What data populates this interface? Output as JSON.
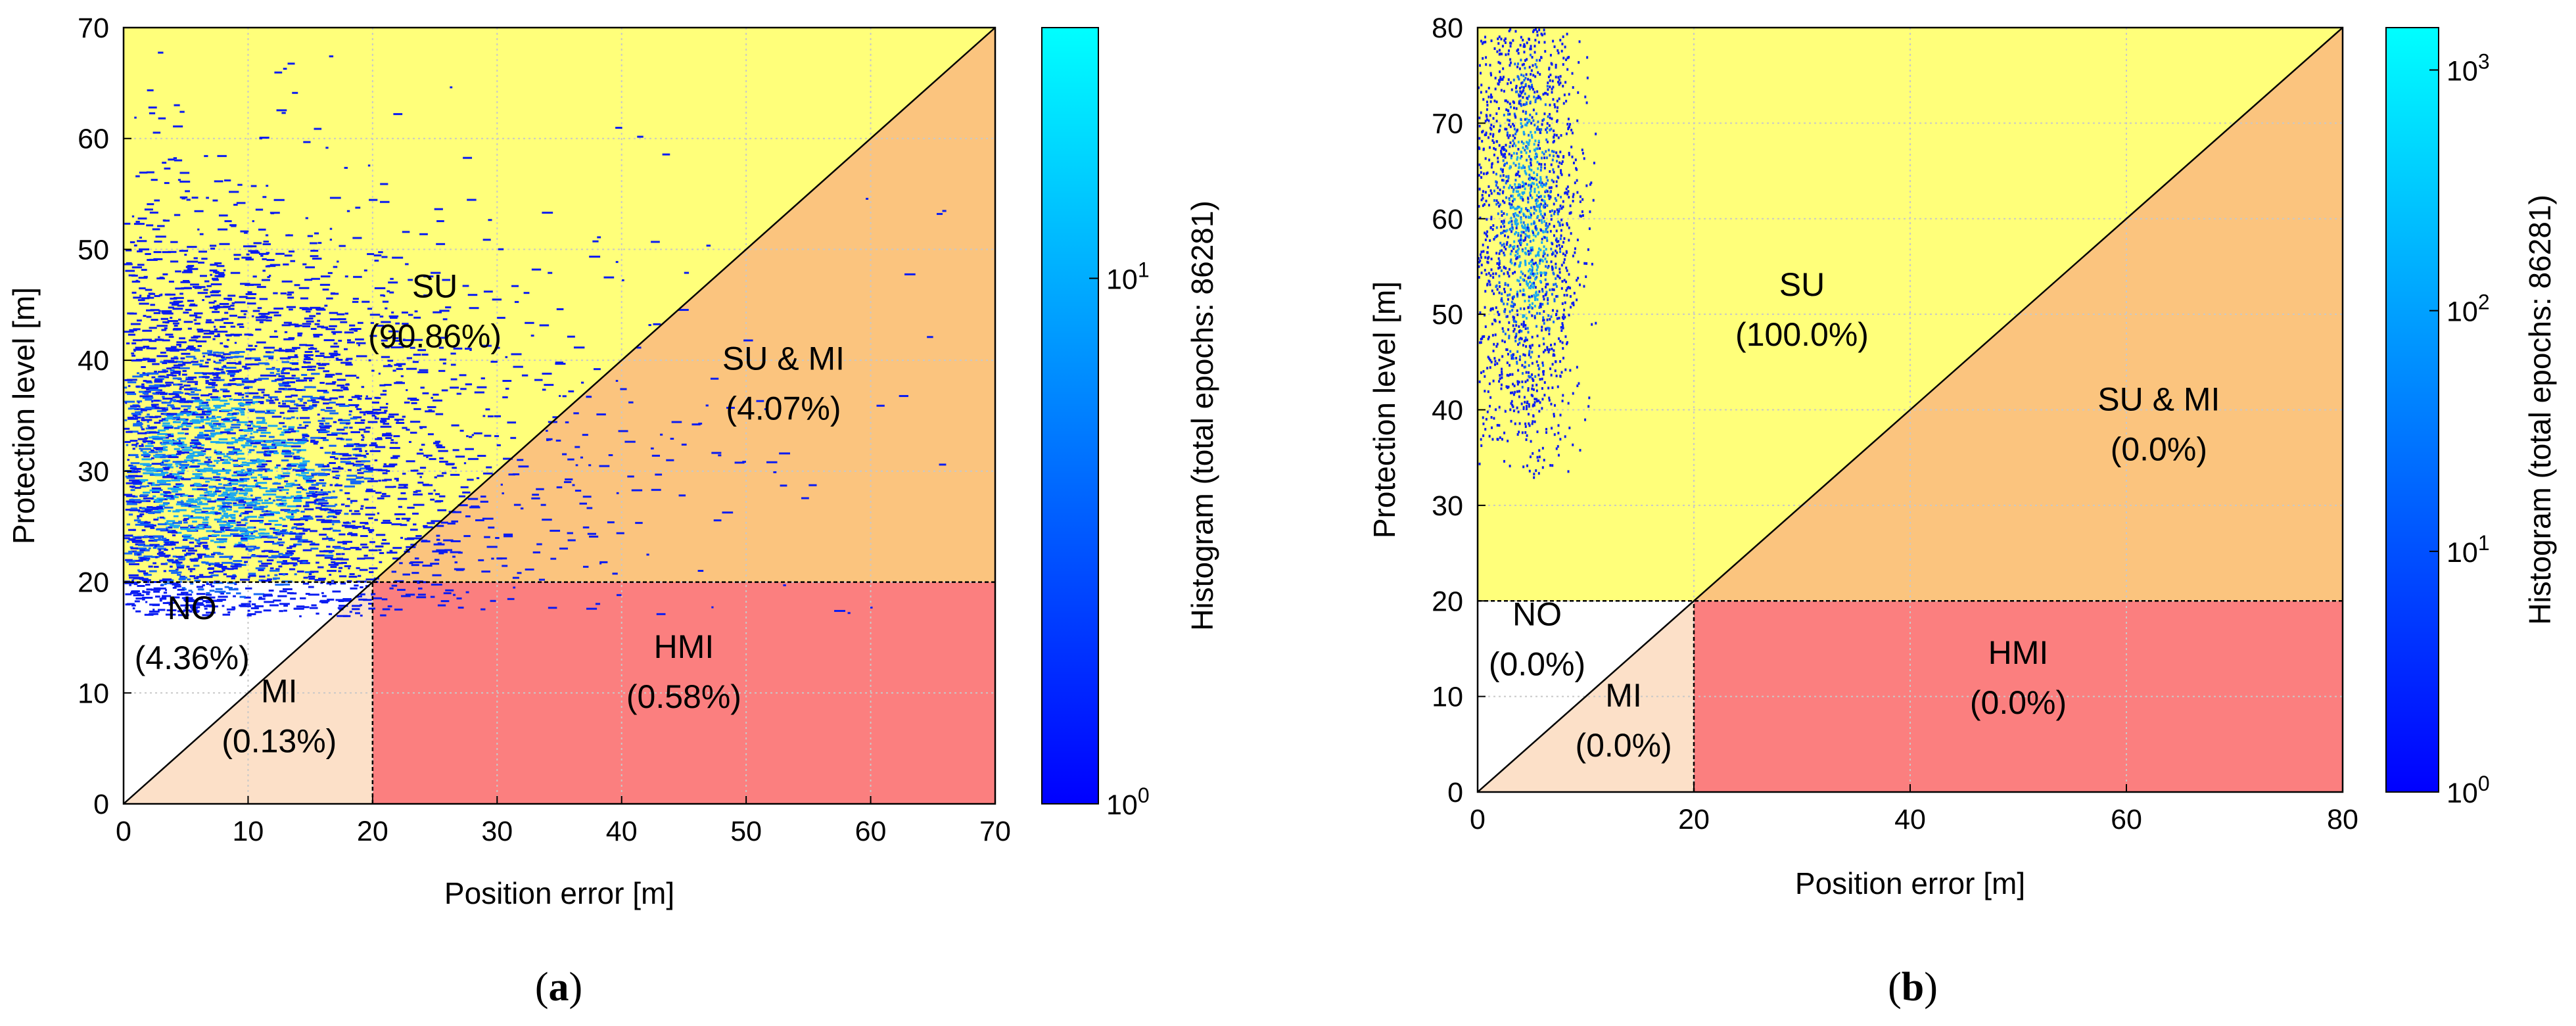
{
  "colors": {
    "su": "#ffff7a",
    "su_mi": "#fbc47e",
    "hmi": "#fb7f7f",
    "mi": "#fce0c8",
    "no": "#ffffff",
    "cmap_low": "#0000ff",
    "cmap_high": "#00ffff"
  },
  "chart_data": [
    {
      "id": "a",
      "type": "heatmap",
      "caption": "(a)",
      "xlabel": "Position error [m]",
      "ylabel": "Protection level [m]",
      "xlim": [
        0,
        70
      ],
      "ylim": [
        0,
        70
      ],
      "alert_limit": 20,
      "x_ticks": [
        0,
        10,
        20,
        30,
        40,
        50,
        60,
        70
      ],
      "y_ticks": [
        0,
        10,
        20,
        30,
        40,
        50,
        60,
        70
      ],
      "colorbar": {
        "label": "Histogram (total epochs: 86281)",
        "scale": "log",
        "range": [
          1,
          30
        ],
        "tick_labels": [
          {
            "base": "10",
            "exp": "0"
          },
          {
            "base": "10",
            "exp": "1"
          }
        ],
        "tick_values": [
          1,
          10
        ]
      },
      "regions": [
        {
          "key": "su",
          "name": "SU",
          "percent": "(90.86%)",
          "label_pos": [
            25,
            44
          ]
        },
        {
          "key": "su_mi",
          "name": "SU & MI",
          "percent": "(4.07%)",
          "label_pos": [
            53,
            37.5
          ]
        },
        {
          "key": "hmi",
          "name": "HMI",
          "percent": "(0.58%)",
          "label_pos": [
            45,
            11.5
          ]
        },
        {
          "key": "mi",
          "name": "MI",
          "percent": "(0.13%)",
          "label_pos": [
            12.5,
            7.5
          ]
        },
        {
          "key": "no",
          "name": "NO",
          "percent": "(4.36%)",
          "label_pos": [
            5.5,
            15
          ]
        }
      ],
      "density": {
        "center_x": 8,
        "center_y": 30,
        "spread_x": 9,
        "spread_y": 9,
        "max_x": 66,
        "max_y": 68,
        "min_y": 17
      }
    },
    {
      "id": "b",
      "type": "heatmap",
      "caption": "(b)",
      "xlabel": "Position error [m]",
      "ylabel": "Protection level [m]",
      "xlim": [
        0,
        80
      ],
      "ylim": [
        0,
        80
      ],
      "alert_limit": 20,
      "x_ticks": [
        0,
        20,
        40,
        60,
        80
      ],
      "y_ticks": [
        0,
        10,
        20,
        30,
        40,
        50,
        60,
        70,
        80
      ],
      "colorbar": {
        "label": "Histogram (total epochs: 86281)",
        "scale": "log",
        "range": [
          1,
          1500
        ],
        "tick_labels": [
          {
            "base": "10",
            "exp": "0"
          },
          {
            "base": "10",
            "exp": "1"
          },
          {
            "base": "10",
            "exp": "2"
          },
          {
            "base": "10",
            "exp": "3"
          }
        ],
        "tick_values": [
          1,
          10,
          100,
          1000
        ]
      },
      "regions": [
        {
          "key": "su",
          "name": "SU",
          "percent": "(100.0%)",
          "label_pos": [
            30,
            50
          ]
        },
        {
          "key": "su_mi",
          "name": "SU & MI",
          "percent": "(0.0%)",
          "label_pos": [
            63,
            38
          ]
        },
        {
          "key": "hmi",
          "name": "HMI",
          "percent": "(0.0%)",
          "label_pos": [
            50,
            11.5
          ]
        },
        {
          "key": "mi",
          "name": "MI",
          "percent": "(0.0%)",
          "label_pos": [
            13.5,
            7
          ]
        },
        {
          "key": "no",
          "name": "NO",
          "percent": "(0.0%)",
          "label_pos": [
            5.5,
            15.5
          ]
        }
      ],
      "density": {
        "center_x": 4.5,
        "center_y": 60,
        "spread_x": 2.5,
        "spread_y": 14,
        "max_x": 11,
        "max_y": 80,
        "min_y": 33
      }
    }
  ]
}
